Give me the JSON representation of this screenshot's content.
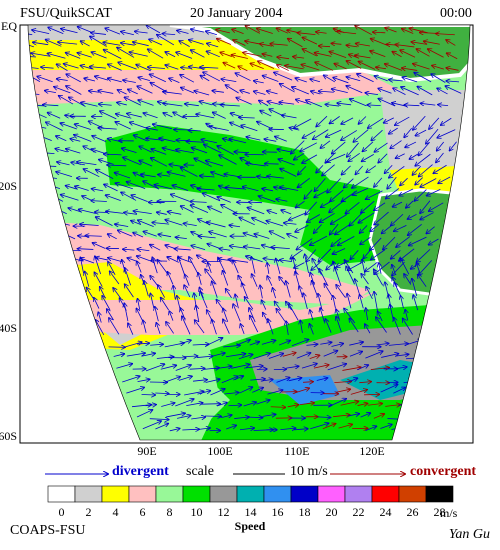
{
  "header": {
    "source": "FSU/QuikSCAT",
    "date": "20 January 2004",
    "time": "00:00"
  },
  "map": {
    "lat_labels": [
      "EQ",
      "20S",
      "40S",
      "60S"
    ],
    "lon_labels": [
      "90E",
      "100E",
      "110E",
      "120E"
    ]
  },
  "legend": {
    "divergent": "divergent",
    "scale": "scale",
    "scale_value": "10 m/s",
    "convergent": "convergent"
  },
  "colorbar": {
    "labels": [
      0,
      2,
      4,
      6,
      8,
      10,
      12,
      14,
      16,
      18,
      20,
      22,
      24,
      26,
      28
    ],
    "unit": "m/s",
    "title": "Speed",
    "colors": [
      "#ffffff",
      "#d0d0d0",
      "#ffff00",
      "#ffc0c0",
      "#98f898",
      "#00e000",
      "#989898",
      "#00b0b0",
      "#3090f0",
      "#0000c8",
      "#ff60ff",
      "#b080f0",
      "#ff0000",
      "#d04000",
      "#000000"
    ]
  },
  "footer": {
    "org": "COAPS-FSU",
    "author": "Yan Gu"
  }
}
